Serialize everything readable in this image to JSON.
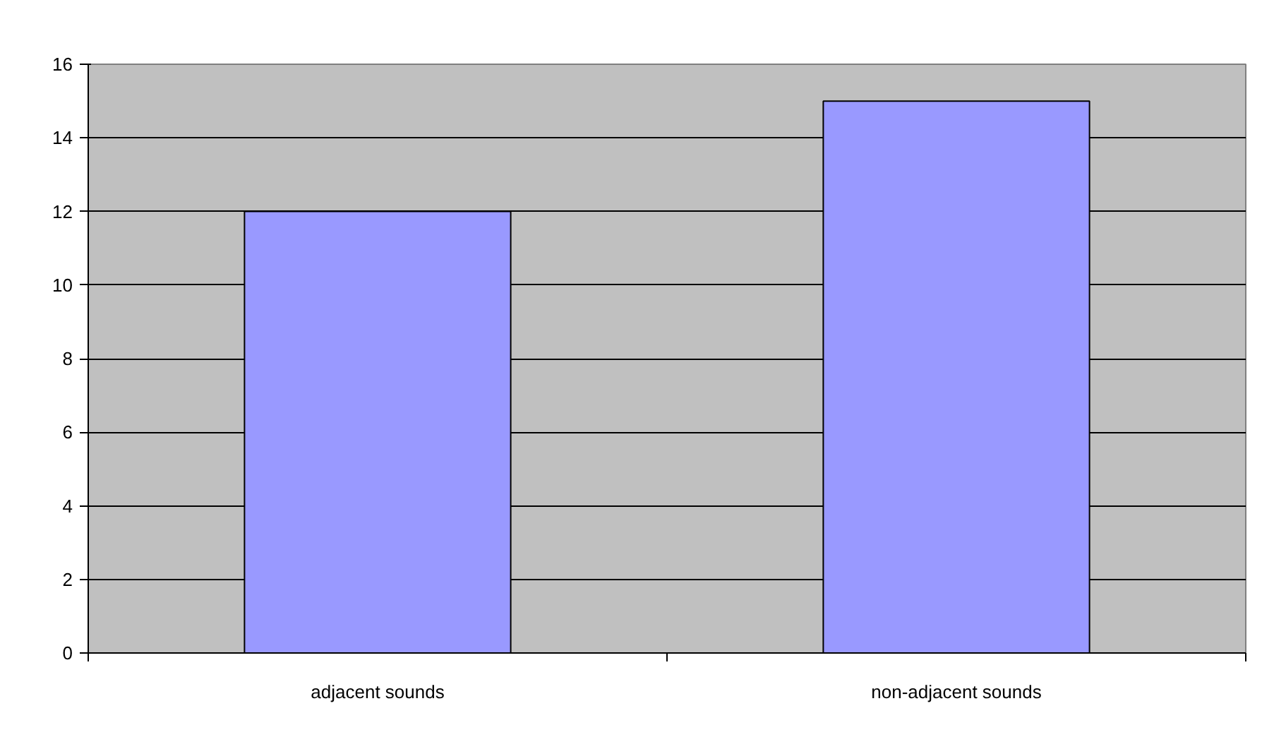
{
  "chart_data": {
    "type": "bar",
    "categories": [
      "adjacent sounds",
      "non-adjacent sounds"
    ],
    "values": [
      12,
      15
    ],
    "color": "#9999ff",
    "ylim": [
      0,
      16
    ],
    "yticks": [
      0,
      2,
      4,
      6,
      8,
      10,
      12,
      14,
      16
    ],
    "grid": "y"
  }
}
